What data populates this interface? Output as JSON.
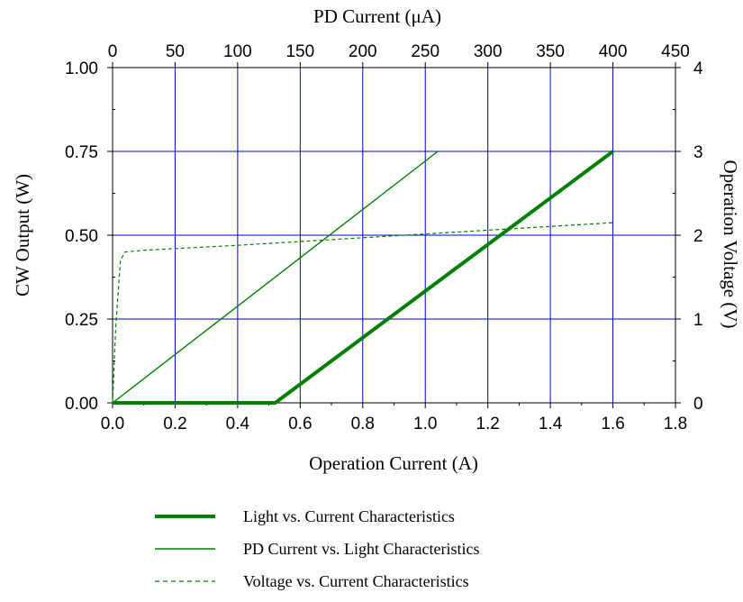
{
  "chart_data": {
    "type": "line",
    "x_axis_bottom": {
      "label": "Operation Current (A)",
      "range": [
        0,
        1.8
      ],
      "ticks": [
        "0.0",
        "0.2",
        "0.4",
        "0.6",
        "0.8",
        "1.0",
        "1.2",
        "1.4",
        "1.6",
        "1.8"
      ]
    },
    "x_axis_top": {
      "label": "PD Current (μA)",
      "range": [
        0,
        450
      ],
      "ticks": [
        "0",
        "50",
        "100",
        "150",
        "200",
        "250",
        "300",
        "350",
        "400",
        "450"
      ]
    },
    "y_axis_left": {
      "label": "CW Output (W)",
      "range": [
        0,
        1.0
      ],
      "ticks": [
        "0.00",
        "0.25",
        "0.50",
        "0.75",
        "1.00"
      ]
    },
    "y_axis_right": {
      "label": "Operation Voltage (V)",
      "range": [
        0,
        4
      ],
      "ticks": [
        "0",
        "1",
        "2",
        "3",
        "4"
      ]
    },
    "grid": true,
    "legend_position": "bottom",
    "colors": {
      "series": "#008000",
      "grid": "#0000cc",
      "axis": "#000000"
    },
    "series": [
      {
        "name": "Light vs. Current Characteristics",
        "x_axis": "bottom",
        "y_axis": "left",
        "style": "thick",
        "x": [
          0.0,
          0.52,
          1.6
        ],
        "y": [
          0.0,
          0.0,
          0.75
        ]
      },
      {
        "name": "PD Current vs. Light Characteristics",
        "x_axis": "top",
        "y_axis": "left",
        "style": "thin",
        "x": [
          0,
          260
        ],
        "y": [
          0.0,
          0.75
        ]
      },
      {
        "name": "Voltage vs. Current Characteristics",
        "x_axis": "bottom",
        "y_axis": "right",
        "style": "dashed",
        "x": [
          0.0,
          0.01,
          0.025,
          0.04,
          0.1,
          0.4,
          0.8,
          1.2,
          1.6
        ],
        "y": [
          0.0,
          0.9,
          1.7,
          1.8,
          1.82,
          1.88,
          1.97,
          2.06,
          2.15
        ]
      }
    ]
  }
}
